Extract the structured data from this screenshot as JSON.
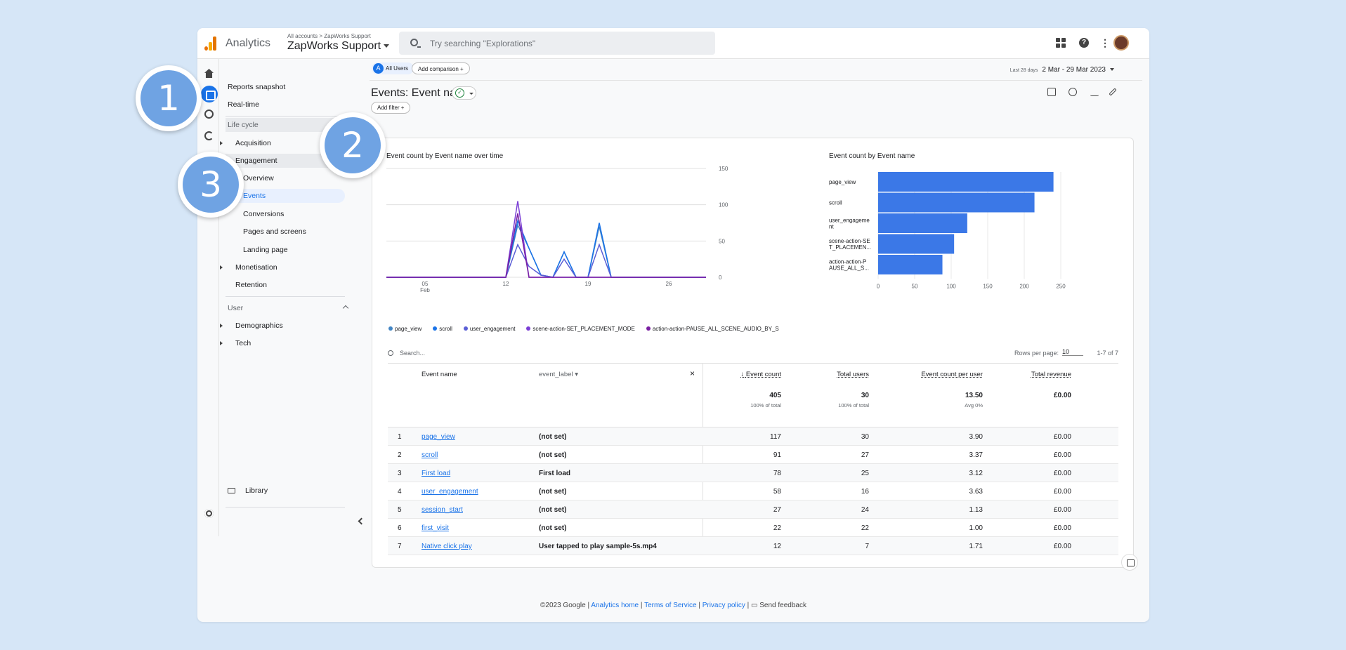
{
  "app": {
    "name": "Analytics",
    "crumb": "All accounts > ZapWorks Support",
    "property": "ZapWorks Support"
  },
  "search": {
    "placeholder": "Try searching \"Explorations\""
  },
  "sidebar": {
    "reports_snapshot": "Reports snapshot",
    "realtime": "Real-time",
    "lifecycle": "Life cycle",
    "acquisition": "Acquisition",
    "engagement": "Engagement",
    "overview": "Overview",
    "events": "Events",
    "conversions": "Conversions",
    "pages_screens": "Pages and screens",
    "landing_page": "Landing page",
    "monetisation": "Monetisation",
    "retention": "Retention",
    "user": "User",
    "demographics": "Demographics",
    "tech": "Tech",
    "library": "Library"
  },
  "toolbar": {
    "all_users_letter": "A",
    "all_users": "All Users",
    "add_comparison": "Add comparison  +",
    "date_hint": "Last 28 days",
    "date_range": "2 Mar - 29 Mar 2023"
  },
  "page": {
    "title": "Events: Event name",
    "add_filter": "Add filter  +"
  },
  "line_chart": {
    "title": "Event count by Event name over time",
    "x_ticks": [
      {
        "label": "05",
        "sub": "Feb"
      },
      {
        "label": "12",
        "sub": ""
      },
      {
        "label": "19",
        "sub": ""
      },
      {
        "label": "26",
        "sub": ""
      }
    ],
    "y_ticks": [
      "150",
      "100",
      "50",
      "0"
    ],
    "legend": [
      {
        "name": "page_view",
        "color": "#4285c4"
      },
      {
        "name": "scroll",
        "color": "#1a73e8"
      },
      {
        "name": "user_engagement",
        "color": "#5b5fd6"
      },
      {
        "name": "scene-action-SET_PLACEMENT_MODE",
        "color": "#7b3fd6"
      },
      {
        "name": "action-action-PAUSE_ALL_SCENE_AUDIO_BY_S",
        "color": "#7a1fa2"
      }
    ]
  },
  "chart_data": {
    "type": "bar",
    "title": "Event count by Event name",
    "categories": [
      "page_view",
      "scroll",
      "user_engageme nt",
      "scene-action-SE T_PLACEMEN...",
      "action-action-P AUSE_ALL_S..."
    ],
    "values": [
      240,
      214,
      122,
      104,
      88
    ],
    "xlim": [
      0,
      250
    ],
    "x_ticks": [
      "0",
      "50",
      "100",
      "150",
      "200",
      "250"
    ],
    "color": "#3b78e7"
  },
  "table": {
    "search_placeholder": "Search...",
    "rows_per_page_label": "Rows per page:",
    "rows_per_page": "10",
    "pagination": "1-7 of 7",
    "headers": {
      "event_name": "Event name",
      "event_label": "event_label",
      "event_count": "Event count",
      "total_users": "Total users",
      "per_user": "Event count per user",
      "revenue": "Total revenue"
    },
    "totals": {
      "event_count": "405",
      "event_count_sub": "100% of total",
      "total_users": "30",
      "total_users_sub": "100% of total",
      "per_user": "13.50",
      "per_user_sub": "Avg 0%",
      "revenue": "£0.00"
    },
    "rows": [
      {
        "n": "1",
        "name": "page_view",
        "label": "(not set)",
        "count": "117",
        "users": "30",
        "per": "3.90",
        "rev": "£0.00"
      },
      {
        "n": "2",
        "name": "scroll",
        "label": "(not set)",
        "count": "91",
        "users": "27",
        "per": "3.37",
        "rev": "£0.00"
      },
      {
        "n": "3",
        "name": "First load",
        "label": "First load",
        "count": "78",
        "users": "25",
        "per": "3.12",
        "rev": "£0.00"
      },
      {
        "n": "4",
        "name": "user_engagement",
        "label": "(not set)",
        "count": "58",
        "users": "16",
        "per": "3.63",
        "rev": "£0.00"
      },
      {
        "n": "5",
        "name": "session_start",
        "label": "(not set)",
        "count": "27",
        "users": "24",
        "per": "1.13",
        "rev": "£0.00"
      },
      {
        "n": "6",
        "name": "first_visit",
        "label": "(not set)",
        "count": "22",
        "users": "22",
        "per": "1.00",
        "rev": "£0.00"
      },
      {
        "n": "7",
        "name": "Native click play",
        "label": "User tapped to play sample-5s.mp4",
        "count": "12",
        "users": "7",
        "per": "1.71",
        "rev": "£0.00"
      }
    ]
  },
  "footer": {
    "copy": "©2023 Google | ",
    "home": "Analytics home",
    "terms": "Terms of Service",
    "privacy": "Privacy policy",
    "feedback": "Send feedback"
  },
  "badges": [
    "1",
    "2",
    "3"
  ]
}
